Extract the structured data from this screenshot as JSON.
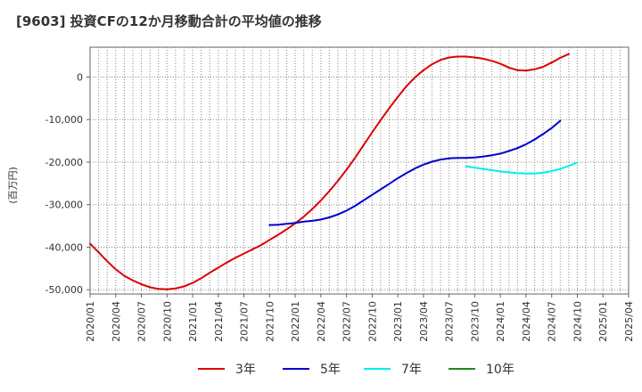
{
  "chart_data": {
    "type": "line",
    "title": "[9603]  投資CFの12か月移動合計の平均値の推移",
    "ylabel": "(百万円)",
    "xlabel": "",
    "ylim": [
      -51000,
      7000
    ],
    "yticks": [
      0,
      -10000,
      -20000,
      -30000,
      -40000,
      -50000
    ],
    "ytick_labels": [
      "0",
      "-10,000",
      "-20,000",
      "-30,000",
      "-40,000",
      "-50,000"
    ],
    "xlim": [
      "2020-01",
      "2025-04"
    ],
    "xticks": [
      "2020/01",
      "2020/04",
      "2020/07",
      "2020/10",
      "2021/01",
      "2021/04",
      "2021/07",
      "2021/10",
      "2022/01",
      "2022/04",
      "2022/07",
      "2022/10",
      "2023/01",
      "2023/04",
      "2023/07",
      "2023/10",
      "2024/01",
      "2024/04",
      "2024/07",
      "2024/10",
      "2025/01",
      "2025/04"
    ],
    "grid": true,
    "legend": "bottom",
    "series": [
      {
        "name": "3年",
        "color": "#dd0000",
        "points": [
          [
            "2020-01",
            -39200
          ],
          [
            "2020-02",
            -41200
          ],
          [
            "2020-03",
            -43300
          ],
          [
            "2020-04",
            -45200
          ],
          [
            "2020-05",
            -46700
          ],
          [
            "2020-06",
            -47800
          ],
          [
            "2020-07",
            -48700
          ],
          [
            "2020-08",
            -49400
          ],
          [
            "2020-09",
            -49800
          ],
          [
            "2020-10",
            -49900
          ],
          [
            "2020-11",
            -49700
          ],
          [
            "2020-12",
            -49200
          ],
          [
            "2021-01",
            -48400
          ],
          [
            "2021-02",
            -47300
          ],
          [
            "2021-03",
            -46000
          ],
          [
            "2021-04",
            -44800
          ],
          [
            "2021-05",
            -43600
          ],
          [
            "2021-06",
            -42500
          ],
          [
            "2021-07",
            -41500
          ],
          [
            "2021-08",
            -40500
          ],
          [
            "2021-09",
            -39500
          ],
          [
            "2021-10",
            -38300
          ],
          [
            "2021-11",
            -37100
          ],
          [
            "2021-12",
            -35800
          ],
          [
            "2022-01",
            -34400
          ],
          [
            "2022-02",
            -32800
          ],
          [
            "2022-03",
            -31000
          ],
          [
            "2022-04",
            -29000
          ],
          [
            "2022-05",
            -26800
          ],
          [
            "2022-06",
            -24400
          ],
          [
            "2022-07",
            -21800
          ],
          [
            "2022-08",
            -19000
          ],
          [
            "2022-09",
            -16000
          ],
          [
            "2022-10",
            -13000
          ],
          [
            "2022-11",
            -10100
          ],
          [
            "2022-12",
            -7300
          ],
          [
            "2023-01",
            -4700
          ],
          [
            "2023-02",
            -2200
          ],
          [
            "2023-03",
            -100
          ],
          [
            "2023-04",
            1600
          ],
          [
            "2023-05",
            3000
          ],
          [
            "2023-06",
            4000
          ],
          [
            "2023-07",
            4600
          ],
          [
            "2023-08",
            4800
          ],
          [
            "2023-09",
            4800
          ],
          [
            "2023-10",
            4600
          ],
          [
            "2023-11",
            4300
          ],
          [
            "2023-12",
            3800
          ],
          [
            "2024-01",
            3100
          ],
          [
            "2024-02",
            2200
          ],
          [
            "2024-03",
            1600
          ],
          [
            "2024-04",
            1500
          ],
          [
            "2024-05",
            1800
          ],
          [
            "2024-06",
            2400
          ],
          [
            "2024-07",
            3400
          ],
          [
            "2024-08",
            4500
          ],
          [
            "2024-09",
            5400
          ]
        ]
      },
      {
        "name": "5年",
        "color": "#0000cc",
        "points": [
          [
            "2021-10",
            -34800
          ],
          [
            "2021-11",
            -34700
          ],
          [
            "2021-12",
            -34500
          ],
          [
            "2022-01",
            -34300
          ],
          [
            "2022-02",
            -34000
          ],
          [
            "2022-03",
            -33800
          ],
          [
            "2022-04",
            -33500
          ],
          [
            "2022-05",
            -33000
          ],
          [
            "2022-06",
            -32300
          ],
          [
            "2022-07",
            -31400
          ],
          [
            "2022-08",
            -30300
          ],
          [
            "2022-09",
            -29000
          ],
          [
            "2022-10",
            -27700
          ],
          [
            "2022-11",
            -26400
          ],
          [
            "2022-12",
            -25100
          ],
          [
            "2023-01",
            -23800
          ],
          [
            "2023-02",
            -22600
          ],
          [
            "2023-03",
            -21500
          ],
          [
            "2023-04",
            -20600
          ],
          [
            "2023-05",
            -19900
          ],
          [
            "2023-06",
            -19400
          ],
          [
            "2023-07",
            -19100
          ],
          [
            "2023-08",
            -19000
          ],
          [
            "2023-09",
            -19000
          ],
          [
            "2023-10",
            -18900
          ],
          [
            "2023-11",
            -18700
          ],
          [
            "2023-12",
            -18400
          ],
          [
            "2024-01",
            -18000
          ],
          [
            "2024-02",
            -17400
          ],
          [
            "2024-03",
            -16700
          ],
          [
            "2024-04",
            -15800
          ],
          [
            "2024-05",
            -14700
          ],
          [
            "2024-06",
            -13400
          ],
          [
            "2024-07",
            -12000
          ],
          [
            "2024-08",
            -10300
          ]
        ]
      },
      {
        "name": "7年",
        "color": "#00eeee",
        "points": [
          [
            "2023-09",
            -21000
          ],
          [
            "2023-10",
            -21300
          ],
          [
            "2023-11",
            -21600
          ],
          [
            "2023-12",
            -21900
          ],
          [
            "2024-01",
            -22200
          ],
          [
            "2024-02",
            -22400
          ],
          [
            "2024-03",
            -22600
          ],
          [
            "2024-04",
            -22700
          ],
          [
            "2024-05",
            -22700
          ],
          [
            "2024-06",
            -22500
          ],
          [
            "2024-07",
            -22100
          ],
          [
            "2024-08",
            -21600
          ],
          [
            "2024-09",
            -20900
          ],
          [
            "2024-10",
            -20100
          ]
        ]
      },
      {
        "name": "10年",
        "color": "#228822",
        "points": []
      }
    ]
  }
}
